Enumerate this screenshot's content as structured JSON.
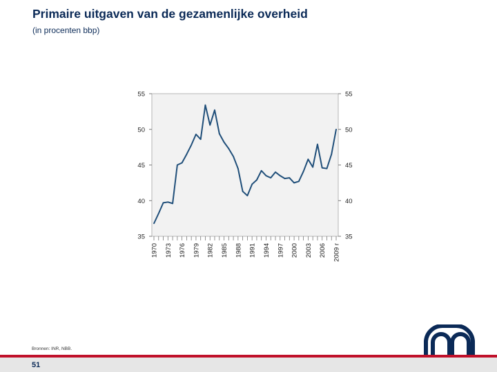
{
  "slide": {
    "title": "Primaire uitgaven van de gezamenlijke overheid",
    "subtitle": "(in procenten bbp)",
    "sources": "Bronnen: INR, NBB.",
    "page_number": "51"
  },
  "colors": {
    "title": "#0b2a57",
    "line": "#1f4e79",
    "plot_bg": "#f2f2f2",
    "accent_red": "#c0102a",
    "footer_bg": "#e6e6e6"
  },
  "logo": {
    "icon": "nbb-logo-icon"
  },
  "chart_data": {
    "type": "line",
    "title": "",
    "xlabel": "",
    "ylabel": "",
    "ylim": [
      35,
      55
    ],
    "xlim": [
      1970,
      2009
    ],
    "yticks": [
      35,
      40,
      45,
      50,
      55
    ],
    "ytick_labels": [
      "35",
      "40",
      "45",
      "50",
      "55"
    ],
    "right_ytick_labels": [
      "35",
      "40",
      "45",
      "50",
      "55"
    ],
    "xtick_labels": [
      "1970",
      "1973",
      "1976",
      "1979",
      "1982",
      "1985",
      "1988",
      "1991",
      "1994",
      "1997",
      "2000",
      "2003",
      "2006",
      "2009 r"
    ],
    "xtick_values": [
      1970,
      1973,
      1976,
      1979,
      1982,
      1985,
      1988,
      1991,
      1994,
      1997,
      2000,
      2003,
      2006,
      2009
    ],
    "grid": false,
    "series": [
      {
        "color": "#1f4e79",
        "x": [
          1970,
          1971,
          1972,
          1973,
          1974,
          1975,
          1976,
          1977,
          1978,
          1979,
          1980,
          1981,
          1982,
          1983,
          1984,
          1985,
          1986,
          1987,
          1988,
          1989,
          1990,
          1991,
          1992,
          1993,
          1994,
          1995,
          1996,
          1997,
          1998,
          1999,
          2000,
          2001,
          2002,
          2003,
          2004,
          2005,
          2006,
          2007,
          2008,
          2009
        ],
        "values": [
          36.8,
          38.2,
          39.7,
          39.8,
          39.6,
          45.0,
          45.3,
          46.5,
          47.8,
          49.3,
          48.6,
          53.4,
          50.6,
          52.7,
          49.4,
          48.2,
          47.3,
          46.2,
          44.5,
          41.3,
          40.7,
          42.3,
          42.9,
          44.2,
          43.5,
          43.2,
          44.0,
          43.5,
          43.1,
          43.2,
          42.5,
          42.7,
          44.1,
          45.8,
          44.7,
          47.9,
          44.6,
          44.5,
          46.5,
          50.0
        ]
      }
    ]
  }
}
